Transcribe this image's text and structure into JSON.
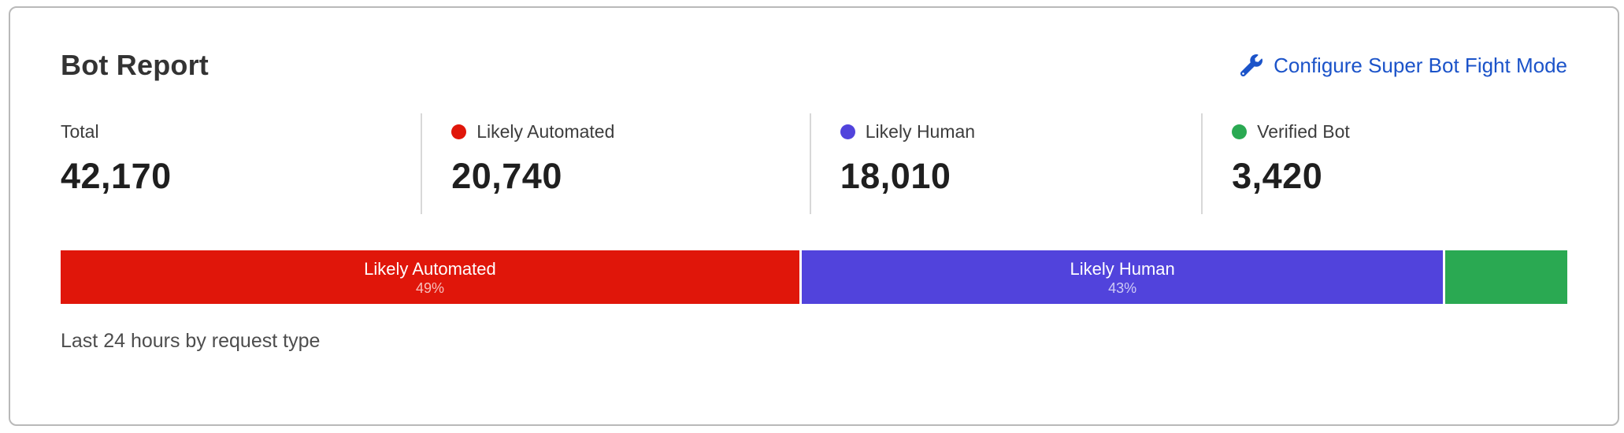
{
  "card": {
    "title": "Bot Report",
    "action_label": "Configure Super Bot Fight Mode",
    "footer": "Last 24 hours by request type"
  },
  "stats": [
    {
      "label": "Total",
      "value": "42,170",
      "dot_color": ""
    },
    {
      "label": "Likely Automated",
      "value": "20,740",
      "dot_color": "#e0160a"
    },
    {
      "label": "Likely Human",
      "value": "18,010",
      "dot_color": "#5143dc"
    },
    {
      "label": "Verified Bot",
      "value": "3,420",
      "dot_color": "#2aa952"
    }
  ],
  "chart_data": {
    "type": "bar",
    "subtype": "horizontal-stacked-percentage",
    "title": "Bot Report",
    "caption": "Last 24 hours by request type",
    "total": 42170,
    "segments": [
      {
        "label": "Likely Automated",
        "value": 20740,
        "percent": 49,
        "percent_text": "49%",
        "color": "#e0160a",
        "show_label": true
      },
      {
        "label": "Likely Human",
        "value": 18010,
        "percent": 43,
        "percent_text": "43%",
        "color": "#5143dc",
        "show_label": true
      },
      {
        "label": "Verified Bot",
        "value": 3420,
        "percent": 8,
        "percent_text": "",
        "color": "#2aa952",
        "show_label": false
      }
    ]
  },
  "colors": {
    "link_blue": "#1b53c9",
    "red": "#e0160a",
    "purple": "#5143dc",
    "green": "#2aa952",
    "divider": "#d8d8d8",
    "card_border": "#b9b9b9"
  }
}
